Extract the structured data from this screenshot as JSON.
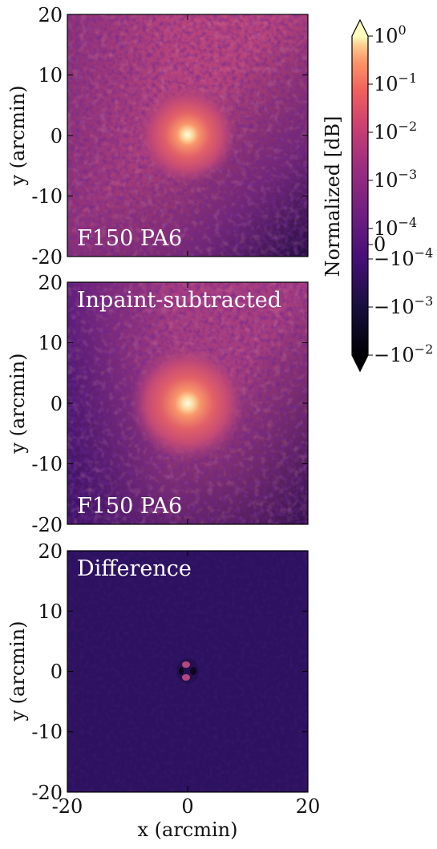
{
  "figure": {
    "colorbar": {
      "label": "Normalized [dB]",
      "colormap": "magma",
      "scale": "symlog",
      "extend": "both",
      "positive_tick_labels": [
        {
          "base": "10",
          "exp": "0"
        },
        {
          "base": "10",
          "exp": "−1"
        },
        {
          "base": "10",
          "exp": "−2"
        },
        {
          "base": "10",
          "exp": "−3"
        },
        {
          "base": "10",
          "exp": "−4"
        }
      ],
      "zero_tick_label": "0",
      "negative_tick_labels": [
        {
          "base": "−10",
          "exp": "−4"
        },
        {
          "base": "−10",
          "exp": "−3"
        },
        {
          "base": "−10",
          "exp": "−2"
        }
      ]
    },
    "panels": [
      {
        "kind": "image",
        "annotation_top": "",
        "annotation_bottom": "F150 PA6",
        "ylabel": "y (arcmin)",
        "xlabel": "",
        "show_x_tick_labels": false
      },
      {
        "kind": "image",
        "annotation_top": "Inpaint-subtracted",
        "annotation_bottom": "F150 PA6",
        "ylabel": "y (arcmin)",
        "xlabel": "",
        "show_x_tick_labels": false
      },
      {
        "kind": "difference",
        "annotation_top": "Difference",
        "annotation_bottom": "",
        "ylabel": "y (arcmin)",
        "xlabel": "x (arcmin)",
        "show_x_tick_labels": true
      }
    ],
    "x_tick_labels": [
      "-20",
      "0",
      "20"
    ],
    "y_tick_labels": [
      "20",
      "10",
      "0",
      "-10",
      "-20"
    ]
  },
  "chart_data": {
    "type": "heatmap",
    "colormap": "magma",
    "color_scale": "symlog",
    "color_range": [
      -0.01,
      1
    ],
    "xlim": [
      -20,
      20
    ],
    "ylim": [
      -20,
      20
    ],
    "x_ticks": [
      -20,
      0,
      20
    ],
    "y_ticks": [
      -20,
      -10,
      0,
      10,
      20
    ],
    "panels": [
      {
        "annotations": [
          "F150 PA6"
        ],
        "peak_position": [
          0,
          0
        ],
        "peak_value": 1
      },
      {
        "annotations": [
          "Inpaint-subtracted",
          "F150 PA6"
        ],
        "peak_position": [
          0,
          0
        ],
        "peak_value": 1
      },
      {
        "annotations": [
          "Difference"
        ],
        "peak_position": [
          0,
          0
        ]
      }
    ]
  }
}
